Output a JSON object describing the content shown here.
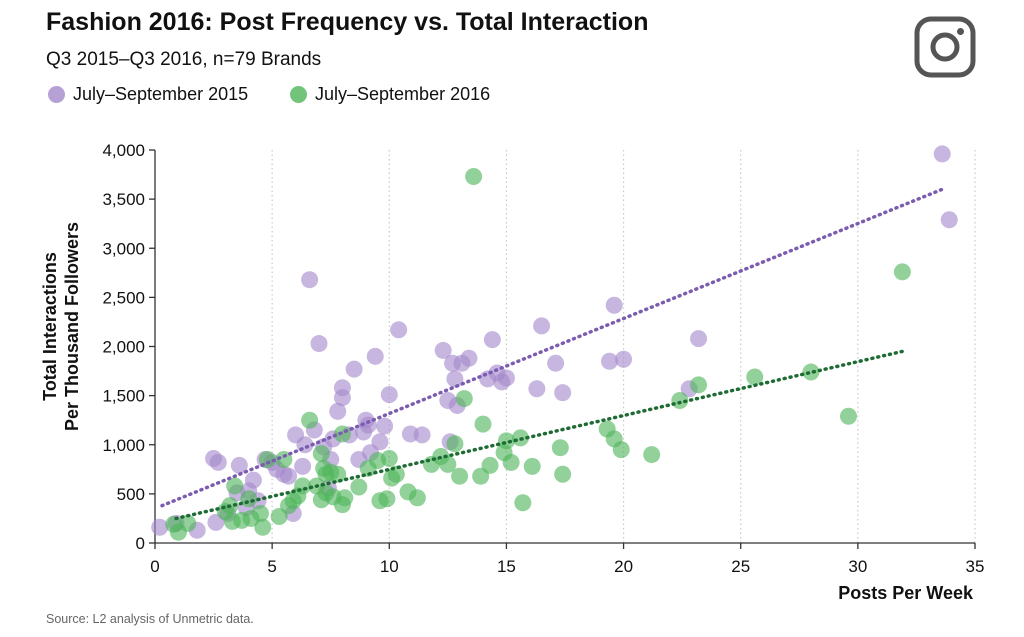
{
  "title": "Fashion 2016: Post Frequency vs. Total Interaction",
  "subtitle": "Q3 2015–Q3 2016, n=79 Brands",
  "source": "Source: L2 analysis of Unmetric data.",
  "logo_icon": "instagram-icon",
  "colors": {
    "series2015": "#a489cc",
    "series2016": "#4fb55a",
    "trend2015": "#7b5cb0",
    "trend2016": "#1e6b34",
    "grid": "#c9c9c9"
  },
  "chart_data": {
    "type": "scatter",
    "title": "Fashion 2016: Post Frequency vs. Total Interaction",
    "xlabel": "Posts Per Week",
    "ylabel": [
      "Total Interactions",
      "Per Thousand Followers"
    ],
    "xlim": [
      0,
      35
    ],
    "ylim": [
      0,
      4000
    ],
    "xticks": [
      0,
      5,
      10,
      15,
      20,
      25,
      30,
      35
    ],
    "yticks": [
      0,
      500,
      1000,
      1500,
      2000,
      2500,
      3000,
      3500,
      4000
    ],
    "xtick_labels": [
      "0",
      "5",
      "10",
      "15",
      "20",
      "25",
      "30",
      "35"
    ],
    "ytick_labels": [
      "0",
      "500",
      "1,000",
      "1,500",
      "2,000",
      "2,500",
      "3,000",
      "3,500",
      "4,000"
    ],
    "grid": "vertical-dotted",
    "series": [
      {
        "name": "July–September 2015",
        "key": "s2015",
        "trendline": [
          [
            0.3,
            380
          ],
          [
            33.6,
            3600
          ]
        ],
        "points": [
          [
            0.2,
            160
          ],
          [
            0.9,
            200
          ],
          [
            1.8,
            130
          ],
          [
            2.5,
            860
          ],
          [
            2.6,
            210
          ],
          [
            3.1,
            300
          ],
          [
            3.5,
            510
          ],
          [
            3.6,
            790
          ],
          [
            3.9,
            360
          ],
          [
            4.0,
            530
          ],
          [
            4.2,
            640
          ],
          [
            4.7,
            850
          ],
          [
            5.0,
            820
          ],
          [
            5.2,
            750
          ],
          [
            5.5,
            700
          ],
          [
            5.7,
            680
          ],
          [
            5.9,
            300
          ],
          [
            6.0,
            1100
          ],
          [
            6.3,
            780
          ],
          [
            6.6,
            2680
          ],
          [
            6.8,
            1150
          ],
          [
            7.0,
            2030
          ],
          [
            7.2,
            980
          ],
          [
            7.4,
            560
          ],
          [
            7.5,
            850
          ],
          [
            7.6,
            1060
          ],
          [
            7.8,
            1340
          ],
          [
            8.0,
            1580
          ],
          [
            8.0,
            1480
          ],
          [
            8.3,
            1100
          ],
          [
            8.5,
            1770
          ],
          [
            8.7,
            850
          ],
          [
            9.0,
            1250
          ],
          [
            9.1,
            1200
          ],
          [
            9.2,
            920
          ],
          [
            9.4,
            1900
          ],
          [
            9.6,
            1030
          ],
          [
            9.8,
            1190
          ],
          [
            10.0,
            1510
          ],
          [
            10.4,
            2170
          ],
          [
            12.3,
            1960
          ],
          [
            12.5,
            1450
          ],
          [
            12.6,
            1030
          ],
          [
            12.7,
            1830
          ],
          [
            12.8,
            1670
          ],
          [
            12.9,
            1400
          ],
          [
            13.1,
            1830
          ],
          [
            13.4,
            1880
          ],
          [
            14.2,
            1670
          ],
          [
            14.4,
            2070
          ],
          [
            14.6,
            1730
          ],
          [
            14.8,
            1640
          ],
          [
            15.0,
            1680
          ],
          [
            16.3,
            1570
          ],
          [
            16.5,
            2210
          ],
          [
            17.1,
            1830
          ],
          [
            17.4,
            1530
          ],
          [
            19.4,
            1850
          ],
          [
            19.6,
            2420
          ],
          [
            20.0,
            1870
          ],
          [
            22.8,
            1570
          ],
          [
            23.2,
            2080
          ],
          [
            33.6,
            3960
          ],
          [
            33.9,
            3290
          ],
          [
            10.9,
            1110
          ],
          [
            11.4,
            1100
          ],
          [
            2.7,
            820
          ],
          [
            4.4,
            430
          ],
          [
            6.4,
            1000
          ],
          [
            8.9,
            1130
          ]
        ]
      },
      {
        "name": "July–September 2016",
        "key": "s2016",
        "trendline": [
          [
            0.9,
            250
          ],
          [
            31.9,
            1950
          ]
        ],
        "points": [
          [
            0.8,
            190
          ],
          [
            1.0,
            110
          ],
          [
            1.4,
            200
          ],
          [
            3.0,
            320
          ],
          [
            3.3,
            220
          ],
          [
            3.4,
            580
          ],
          [
            3.7,
            230
          ],
          [
            4.0,
            450
          ],
          [
            4.5,
            300
          ],
          [
            4.6,
            160
          ],
          [
            4.8,
            850
          ],
          [
            5.3,
            270
          ],
          [
            5.5,
            850
          ],
          [
            5.7,
            380
          ],
          [
            6.1,
            480
          ],
          [
            6.6,
            1250
          ],
          [
            6.9,
            580
          ],
          [
            7.1,
            440
          ],
          [
            7.1,
            910
          ],
          [
            7.2,
            760
          ],
          [
            7.3,
            700
          ],
          [
            7.3,
            510
          ],
          [
            7.5,
            720
          ],
          [
            7.6,
            470
          ],
          [
            7.8,
            700
          ],
          [
            8.0,
            390
          ],
          [
            8.0,
            1110
          ],
          [
            8.7,
            570
          ],
          [
            9.1,
            760
          ],
          [
            9.5,
            840
          ],
          [
            9.6,
            430
          ],
          [
            9.9,
            450
          ],
          [
            10.0,
            860
          ],
          [
            10.1,
            660
          ],
          [
            10.3,
            700
          ],
          [
            11.2,
            460
          ],
          [
            11.8,
            800
          ],
          [
            12.2,
            880
          ],
          [
            12.8,
            1010
          ],
          [
            13.2,
            1470
          ],
          [
            13.6,
            3730
          ],
          [
            13.9,
            680
          ],
          [
            14.0,
            1210
          ],
          [
            14.3,
            790
          ],
          [
            14.9,
            920
          ],
          [
            15.0,
            1040
          ],
          [
            15.2,
            820
          ],
          [
            15.6,
            1070
          ],
          [
            15.7,
            410
          ],
          [
            16.1,
            780
          ],
          [
            17.3,
            970
          ],
          [
            17.4,
            700
          ],
          [
            19.3,
            1160
          ],
          [
            19.6,
            1060
          ],
          [
            19.9,
            950
          ],
          [
            21.2,
            900
          ],
          [
            22.4,
            1450
          ],
          [
            23.2,
            1610
          ],
          [
            25.6,
            1690
          ],
          [
            28.0,
            1740
          ],
          [
            29.6,
            1290
          ],
          [
            31.9,
            2760
          ],
          [
            13.0,
            680
          ],
          [
            6.3,
            580
          ],
          [
            8.1,
            460
          ],
          [
            10.8,
            520
          ],
          [
            4.1,
            250
          ],
          [
            3.2,
            380
          ],
          [
            12.5,
            800
          ],
          [
            5.9,
            430
          ]
        ]
      }
    ]
  }
}
